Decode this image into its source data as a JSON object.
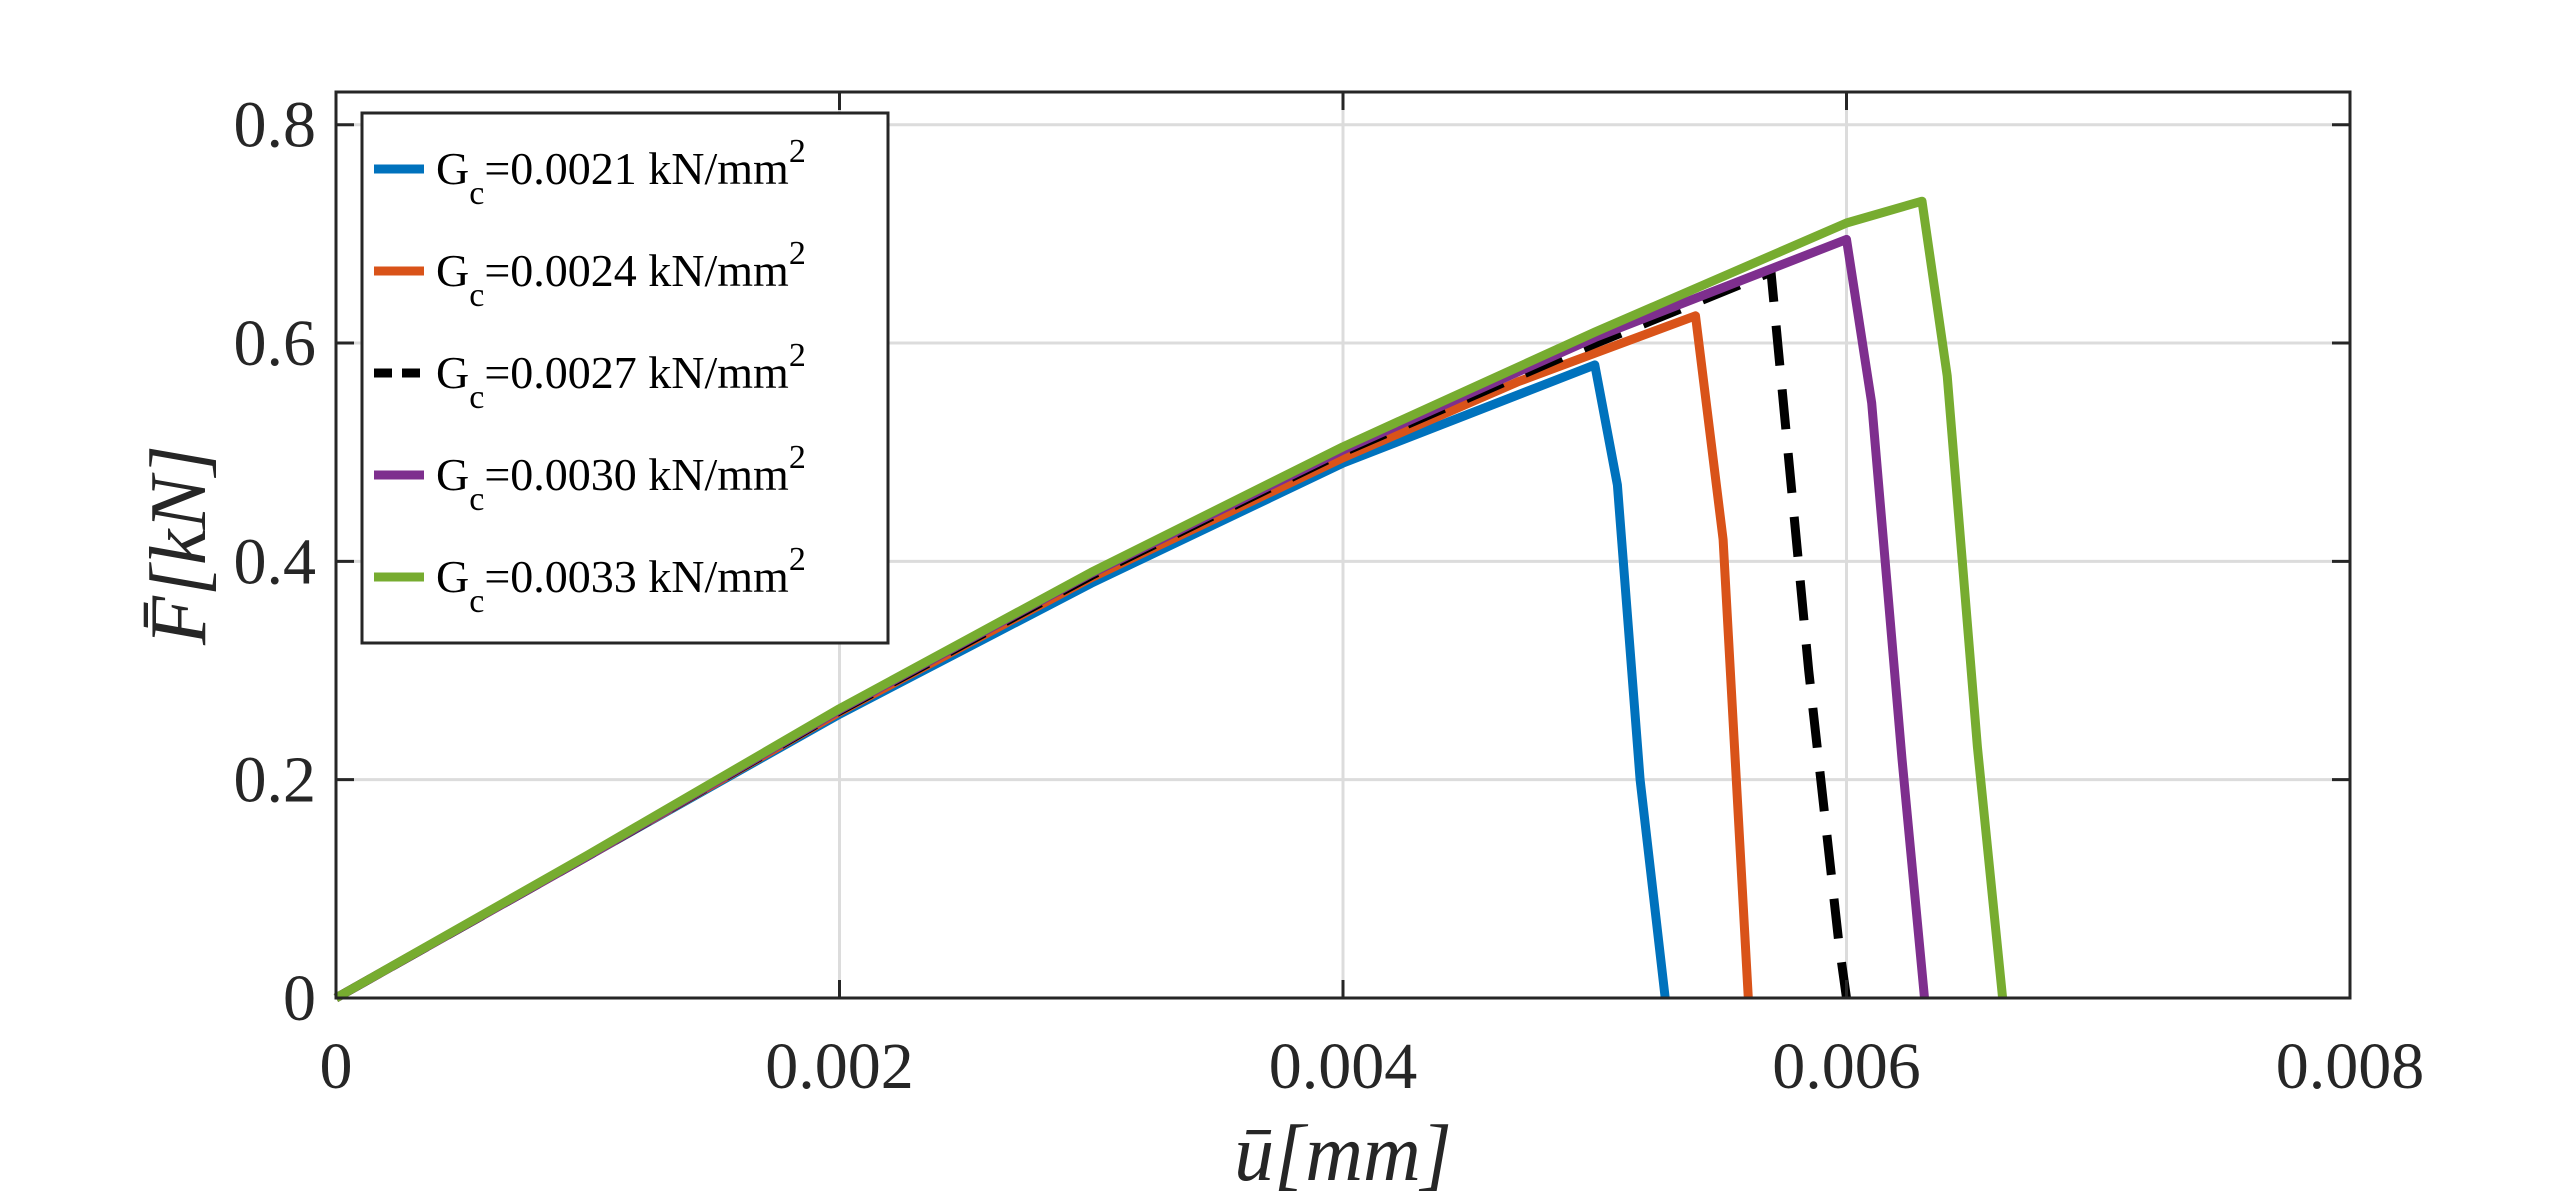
{
  "chart_data": {
    "type": "line",
    "title": "",
    "xlabel": "ū[mm]",
    "ylabel": "F̄[kN]",
    "xlim": [
      0,
      0.008
    ],
    "ylim": [
      0,
      0.83
    ],
    "grid": true,
    "legend_position": "top-left",
    "xticks": [
      0,
      0.002,
      0.004,
      0.006,
      0.008
    ],
    "xtick_labels": [
      "0",
      "0.002",
      "0.004",
      "0.006",
      "0.008"
    ],
    "yticks": [
      0,
      0.2,
      0.4,
      0.6,
      0.8
    ],
    "ytick_labels": [
      "0",
      "0.2",
      "0.4",
      "0.6",
      "0.8"
    ],
    "series": [
      {
        "name": "Gc=0.0021 kN/mm2",
        "legend_main": "G",
        "legend_sub": "c",
        "legend_rest": "=0.0021 kN/mm",
        "legend_sup": "2",
        "color": "#0072BD",
        "dashed": false,
        "x": [
          0,
          0.001,
          0.002,
          0.003,
          0.004,
          0.0045,
          0.005,
          0.00509,
          0.00518,
          0.00528
        ],
        "y": [
          0,
          0.13,
          0.26,
          0.38,
          0.49,
          0.535,
          0.58,
          0.47,
          0.2,
          0
        ]
      },
      {
        "name": "Gc=0.0024 kN/mm2",
        "legend_main": "G",
        "legend_sub": "c",
        "legend_rest": "=0.0024 kN/mm",
        "legend_sup": "2",
        "color": "#D95319",
        "dashed": false,
        "x": [
          0,
          0.001,
          0.002,
          0.003,
          0.004,
          0.0047,
          0.0054,
          0.00551,
          0.00561
        ],
        "y": [
          0,
          0.13,
          0.262,
          0.385,
          0.495,
          0.565,
          0.625,
          0.42,
          0
        ]
      },
      {
        "name": "Gc=0.0027 kN/mm2",
        "legend_main": "G",
        "legend_sub": "c",
        "legend_rest": "=0.0027 kN/mm",
        "legend_sup": "2",
        "color": "#000000",
        "dashed": true,
        "x": [
          0,
          0.001,
          0.002,
          0.003,
          0.004,
          0.0049,
          0.0057,
          0.00585,
          0.00597,
          0.006
        ],
        "y": [
          0,
          0.13,
          0.263,
          0.387,
          0.5,
          0.59,
          0.665,
          0.3,
          0.05,
          0
        ]
      },
      {
        "name": "Gc=0.0030 kN/mm2",
        "legend_main": "G",
        "legend_sub": "c",
        "legend_rest": "=0.0030 kN/mm",
        "legend_sup": "2",
        "color": "#7E2F8E",
        "dashed": false,
        "x": [
          0,
          0.001,
          0.002,
          0.003,
          0.004,
          0.005,
          0.006,
          0.0061,
          0.00622,
          0.00631
        ],
        "y": [
          0,
          0.13,
          0.264,
          0.389,
          0.502,
          0.605,
          0.695,
          0.545,
          0.22,
          0
        ]
      },
      {
        "name": "Gc=0.0033 kN/mm2",
        "legend_main": "G",
        "legend_sub": "c",
        "legend_rest": "=0.0033 kN/mm",
        "legend_sup": "2",
        "color": "#77AC30",
        "dashed": false,
        "x": [
          0,
          0.001,
          0.002,
          0.003,
          0.004,
          0.005,
          0.006,
          0.0063,
          0.0064,
          0.00652,
          0.00662
        ],
        "y": [
          0,
          0.131,
          0.265,
          0.39,
          0.505,
          0.61,
          0.71,
          0.73,
          0.57,
          0.23,
          0
        ]
      }
    ]
  }
}
